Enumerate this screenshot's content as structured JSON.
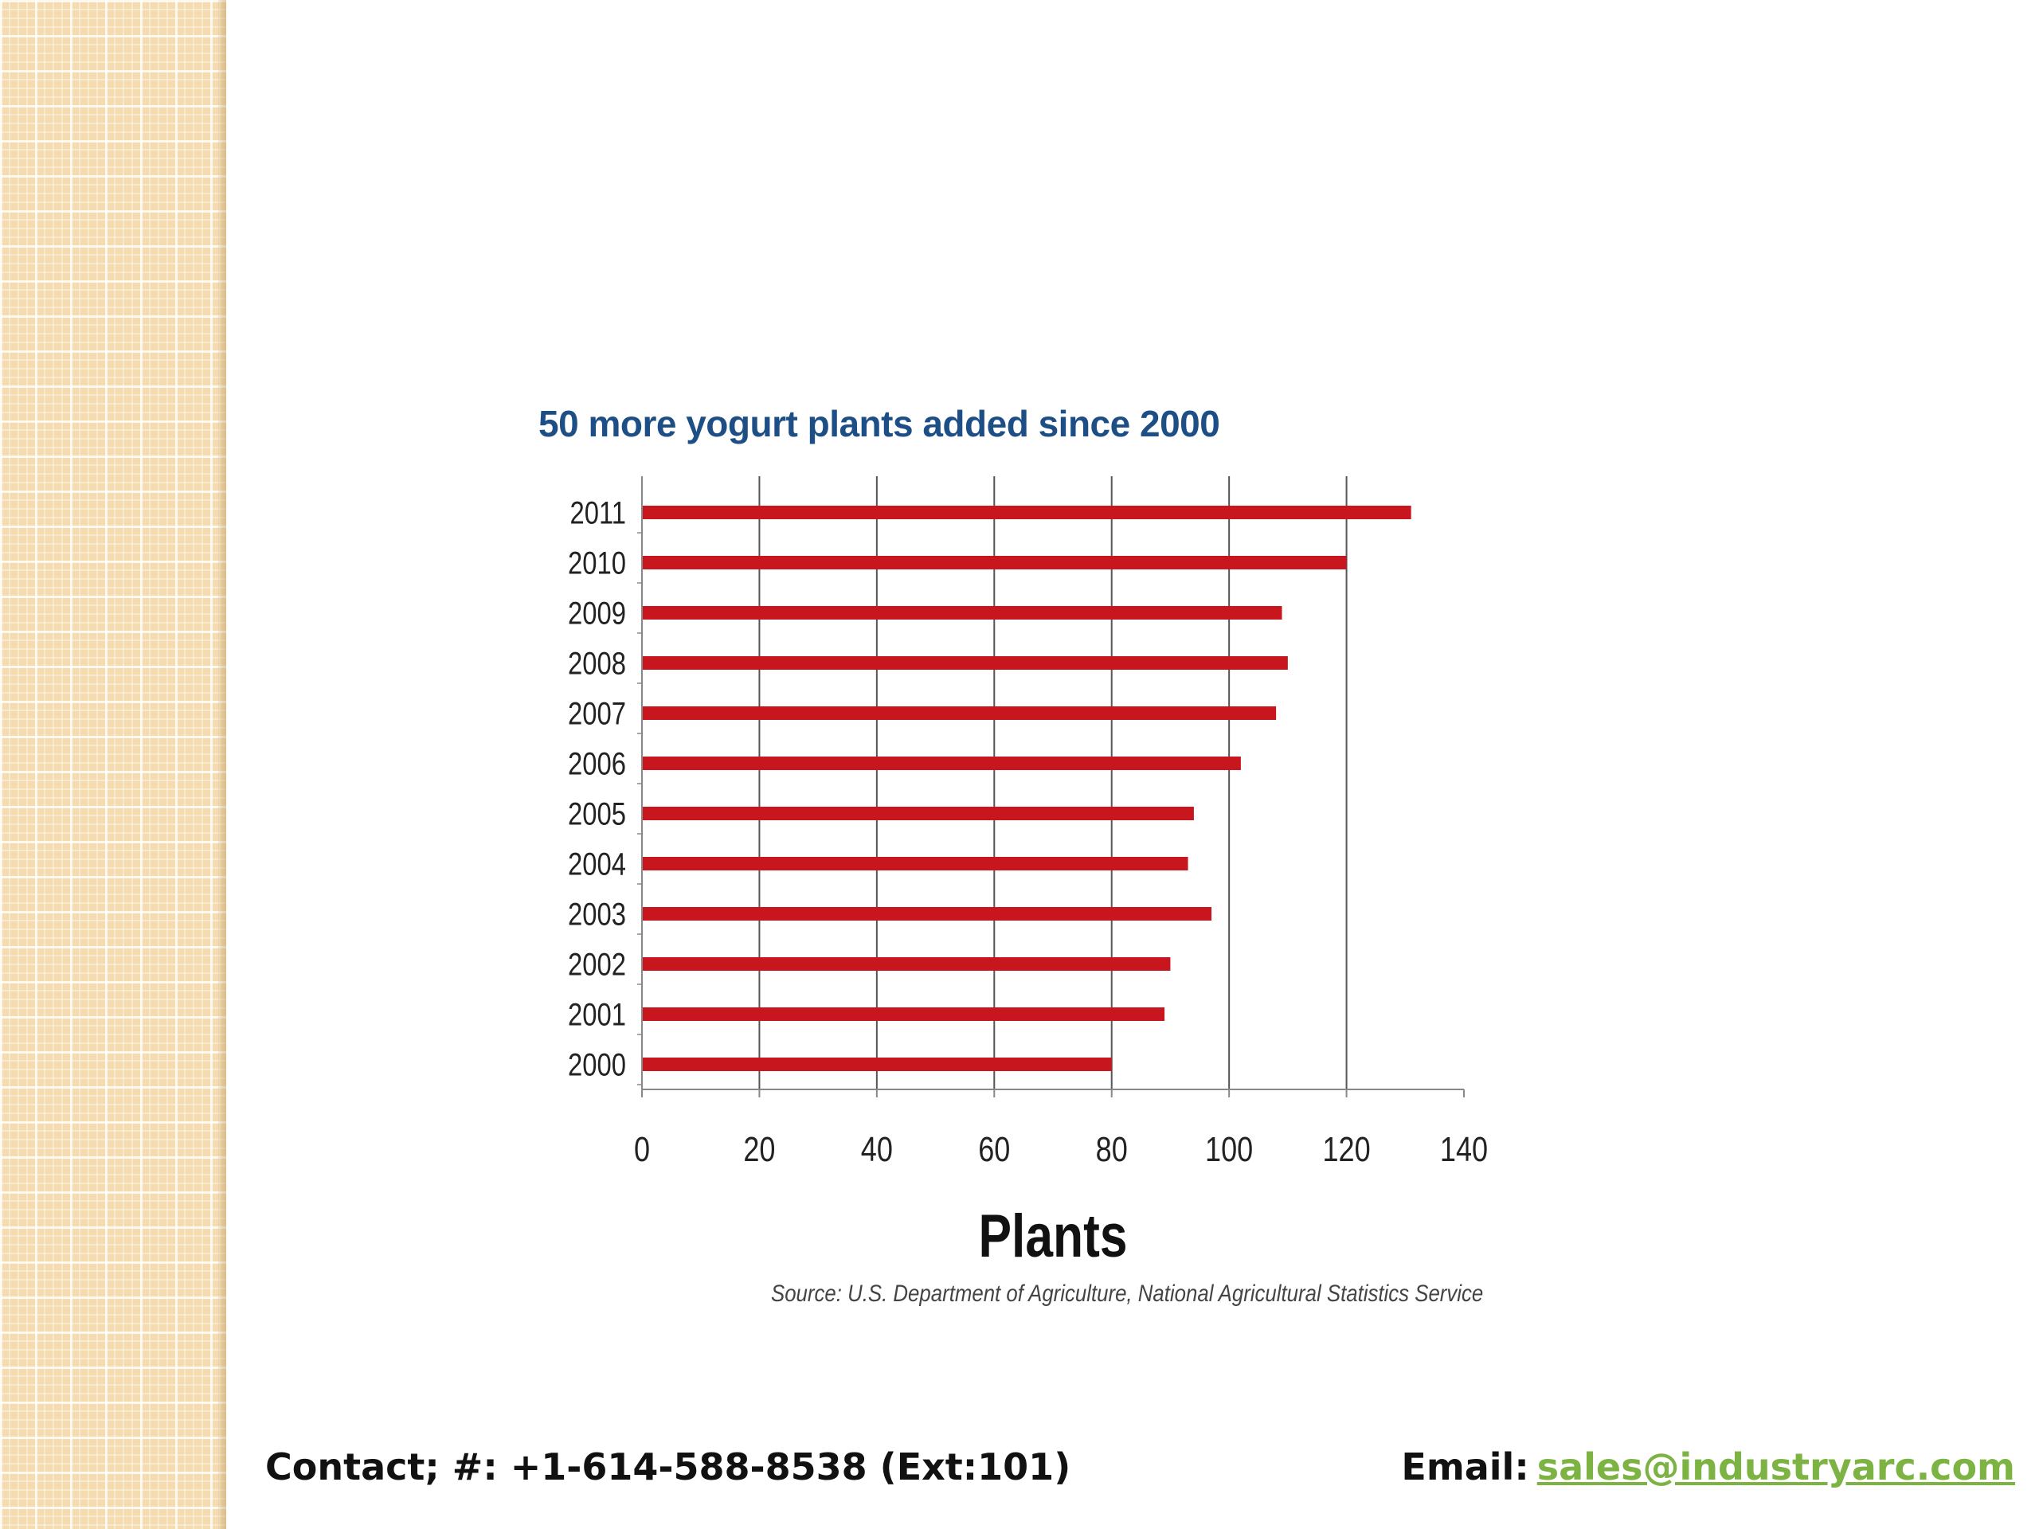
{
  "slide": {
    "contact_text": "Contact; #: +1-614-588-8538 (Ext:101)",
    "email_label": "Email:",
    "email_link": "sales@industryarc.com"
  },
  "chart_data": {
    "type": "bar",
    "orientation": "horizontal",
    "title": "50 more yogurt plants added since 2000",
    "xlabel": "Plants",
    "ylabel": "",
    "source": "Source: U.S. Department of Agriculture, National Agricultural Statistics Service",
    "categories": [
      "2011",
      "2010",
      "2009",
      "2008",
      "2007",
      "2006",
      "2005",
      "2004",
      "2003",
      "2002",
      "2001",
      "2000"
    ],
    "values": [
      131,
      120,
      109,
      110,
      108,
      102,
      94,
      93,
      97,
      90,
      89,
      80
    ],
    "xlim": [
      0,
      140
    ],
    "xticks": [
      "0",
      "20",
      "40",
      "60",
      "80",
      "100",
      "120",
      "140"
    ],
    "grid": "vertical",
    "legend": "none",
    "colors": {
      "bar": "#c8161e",
      "grid": "#555555",
      "title": "#1d4f86"
    }
  }
}
